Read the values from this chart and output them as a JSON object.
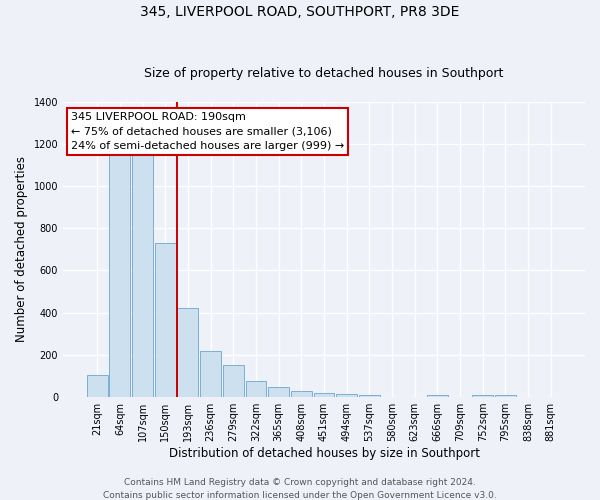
{
  "title": "345, LIVERPOOL ROAD, SOUTHPORT, PR8 3DE",
  "subtitle": "Size of property relative to detached houses in Southport",
  "xlabel": "Distribution of detached houses by size in Southport",
  "ylabel": "Number of detached properties",
  "bin_labels": [
    "21sqm",
    "64sqm",
    "107sqm",
    "150sqm",
    "193sqm",
    "236sqm",
    "279sqm",
    "322sqm",
    "365sqm",
    "408sqm",
    "451sqm",
    "494sqm",
    "537sqm",
    "580sqm",
    "623sqm",
    "666sqm",
    "709sqm",
    "752sqm",
    "795sqm",
    "838sqm",
    "881sqm"
  ],
  "bar_heights": [
    105,
    1160,
    1160,
    730,
    420,
    220,
    150,
    75,
    50,
    30,
    20,
    15,
    10,
    0,
    0,
    10,
    0,
    10,
    10,
    0,
    0
  ],
  "bar_color": "#cde0f0",
  "bar_edge_color": "#7ab0d4",
  "vline_x_index": 4,
  "vline_color": "#cc0000",
  "annotation_title": "345 LIVERPOOL ROAD: 190sqm",
  "annotation_line1": "← 75% of detached houses are smaller (3,106)",
  "annotation_line2": "24% of semi-detached houses are larger (999) →",
  "annotation_box_color": "#ffffff",
  "annotation_box_edge_color": "#cc0000",
  "ylim": [
    0,
    1400
  ],
  "yticks": [
    0,
    200,
    400,
    600,
    800,
    1000,
    1200,
    1400
  ],
  "footer_line1": "Contains HM Land Registry data © Crown copyright and database right 2024.",
  "footer_line2": "Contains public sector information licensed under the Open Government Licence v3.0.",
  "background_color": "#eef2f8",
  "grid_color": "#ffffff",
  "title_fontsize": 10,
  "subtitle_fontsize": 9,
  "axis_label_fontsize": 8.5,
  "tick_fontsize": 7,
  "annotation_fontsize": 8,
  "footer_fontsize": 6.5
}
